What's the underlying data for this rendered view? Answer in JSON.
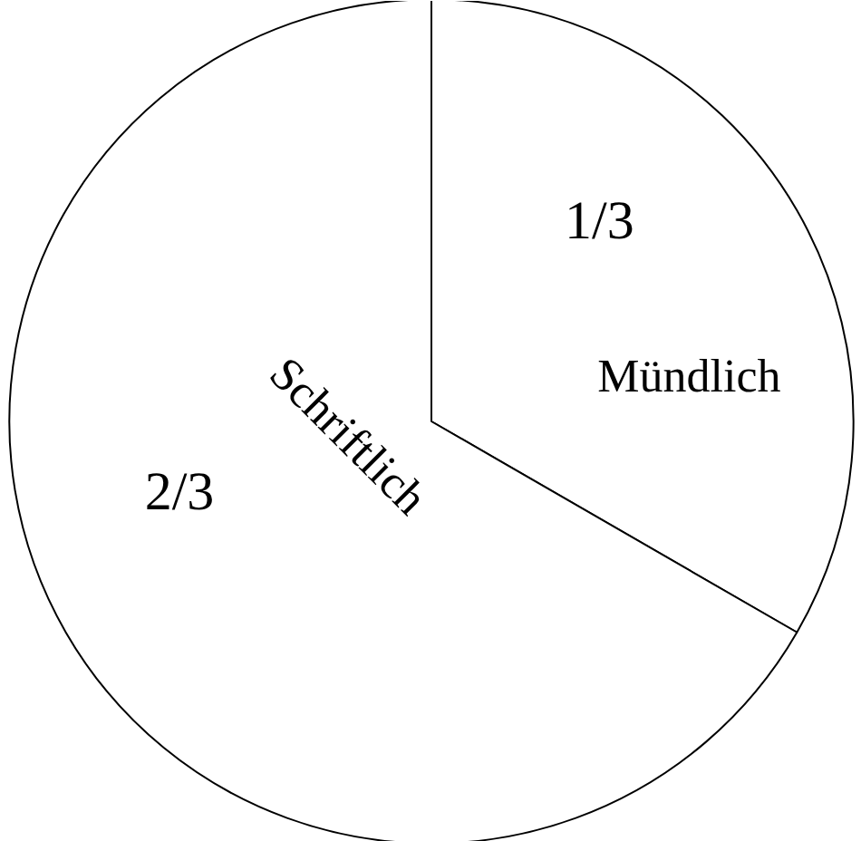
{
  "chart_data": {
    "type": "pie",
    "categories": [
      "Mündlich",
      "Schriftlich"
    ],
    "values": [
      0.3333,
      0.6667
    ],
    "colors": [
      "#ffffff",
      "#ffffff"
    ],
    "value_labels": [
      "1/3",
      "2/3"
    ]
  }
}
